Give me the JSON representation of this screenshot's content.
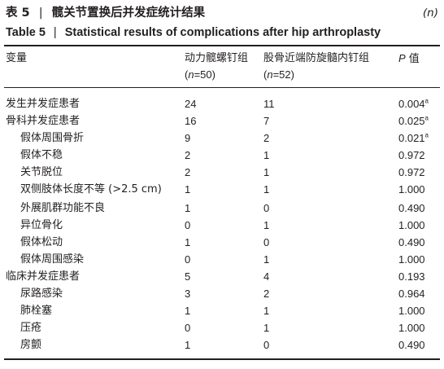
{
  "caption": {
    "cn_prefix": "表 5",
    "separator": "|",
    "cn_title": "髋关节置换后并发症统计结果",
    "unit": "(n)",
    "en_prefix": "Table 5",
    "en_title": "Statistical results of complications after hip arthroplasty"
  },
  "table": {
    "headers": {
      "col0": "变量",
      "col1_name": "动力髋螺钉组",
      "col1_n_label": "n",
      "col1_n_value": "=50)",
      "col2_name": "股骨近端防旋髓内钉组",
      "col2_n_label": "n",
      "col2_n_value": "=52)",
      "col3_p": "P",
      "col3_rest": " 值"
    },
    "rows": [
      {
        "label": "发生并发症患者",
        "indent": false,
        "g1": "24",
        "g2": "11",
        "p": "0.004",
        "sig": "a"
      },
      {
        "label": "骨科并发症患者",
        "indent": false,
        "g1": "16",
        "g2": "7",
        "p": "0.025",
        "sig": "a"
      },
      {
        "label": "假体周围骨折",
        "indent": true,
        "g1": "9",
        "g2": "2",
        "p": "0.021",
        "sig": "a"
      },
      {
        "label": "假体不稳",
        "indent": true,
        "g1": "2",
        "g2": "1",
        "p": "0.972",
        "sig": ""
      },
      {
        "label": "关节脱位",
        "indent": true,
        "g1": "2",
        "g2": "1",
        "p": "0.972",
        "sig": ""
      },
      {
        "label": "双侧肢体长度不等 (>2.5 cm)",
        "indent": true,
        "g1": "1",
        "g2": "1",
        "p": "1.000",
        "sig": ""
      },
      {
        "label": "外展肌群功能不良",
        "indent": true,
        "g1": "1",
        "g2": "0",
        "p": "0.490",
        "sig": ""
      },
      {
        "label": "异位骨化",
        "indent": true,
        "g1": "0",
        "g2": "1",
        "p": "1.000",
        "sig": ""
      },
      {
        "label": "假体松动",
        "indent": true,
        "g1": "1",
        "g2": "0",
        "p": "0.490",
        "sig": ""
      },
      {
        "label": "假体周围感染",
        "indent": true,
        "g1": "0",
        "g2": "1",
        "p": "1.000",
        "sig": ""
      },
      {
        "label": "临床并发症患者",
        "indent": false,
        "g1": "5",
        "g2": "4",
        "p": "0.193",
        "sig": ""
      },
      {
        "label": "尿路感染",
        "indent": true,
        "g1": "3",
        "g2": "2",
        "p": "0.964",
        "sig": ""
      },
      {
        "label": "肺栓塞",
        "indent": true,
        "g1": "1",
        "g2": "1",
        "p": "1.000",
        "sig": ""
      },
      {
        "label": "压疮",
        "indent": true,
        "g1": "0",
        "g2": "1",
        "p": "1.000",
        "sig": ""
      },
      {
        "label": "房颤",
        "indent": true,
        "g1": "1",
        "g2": "0",
        "p": "0.490",
        "sig": ""
      }
    ]
  }
}
